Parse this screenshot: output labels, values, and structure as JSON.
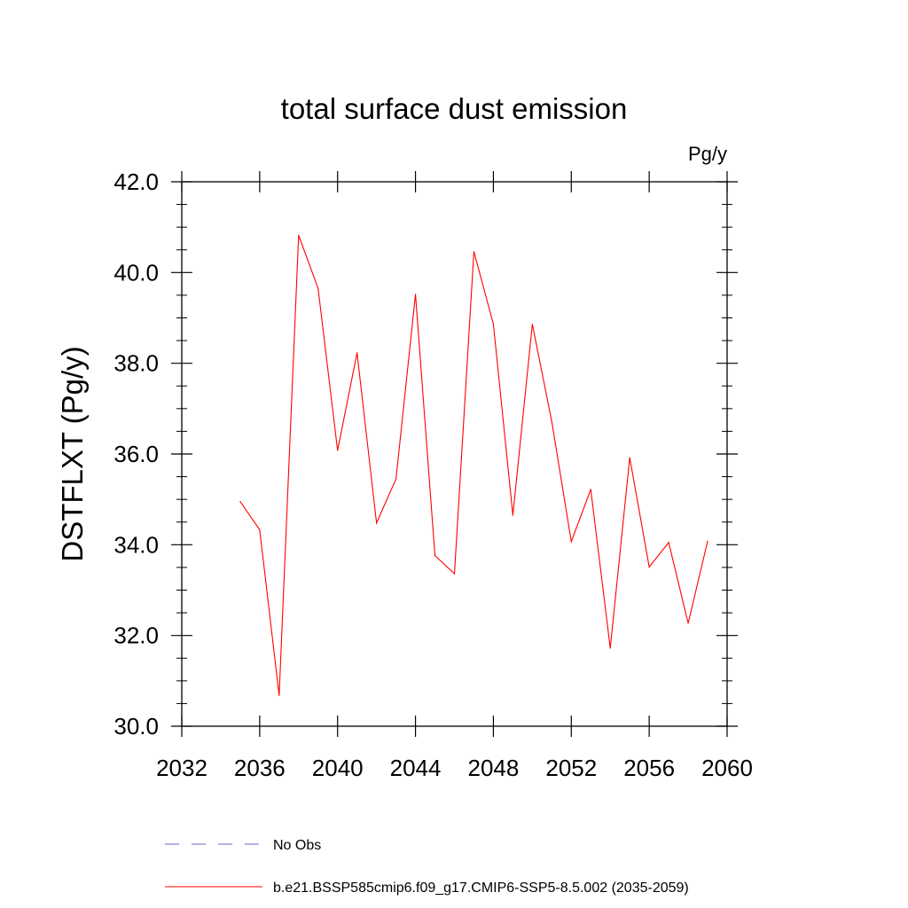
{
  "chart_data": {
    "type": "line",
    "title": "total surface dust emission",
    "units": "Pg/y",
    "ylabel": "DSTFLXT  (Pg/y)",
    "xlabel": "",
    "xlim": [
      2032,
      2060
    ],
    "ylim": [
      30.0,
      42.0
    ],
    "x_ticks": [
      2032,
      2036,
      2040,
      2044,
      2048,
      2052,
      2056,
      2060
    ],
    "x_tick_labels": [
      "2032",
      "2036",
      "2040",
      "2044",
      "2048",
      "2052",
      "2056",
      "2060"
    ],
    "y_ticks": [
      30.0,
      32.0,
      34.0,
      36.0,
      38.0,
      40.0,
      42.0
    ],
    "y_tick_labels": [
      "30.0",
      "32.0",
      "34.0",
      "36.0",
      "38.0",
      "40.0",
      "42.0"
    ],
    "grid": false,
    "series": [
      {
        "name": "b.e21.BSSP585cmip6.f09_g17.CMIP6-SSP5-8.5.002 (2035-2059)",
        "color": "#ff0000",
        "style": "solid",
        "x": [
          2035,
          2036,
          2037,
          2038,
          2039,
          2040,
          2041,
          2042,
          2043,
          2044,
          2045,
          2046,
          2047,
          2048,
          2049,
          2050,
          2051,
          2052,
          2053,
          2054,
          2055,
          2056,
          2057,
          2058,
          2059
        ],
        "values": [
          34.95,
          34.33,
          30.68,
          40.82,
          39.65,
          36.08,
          38.23,
          34.48,
          35.45,
          39.52,
          33.76,
          33.36,
          40.46,
          38.86,
          34.65,
          38.86,
          36.71,
          34.07,
          35.22,
          31.72,
          35.92,
          33.51,
          34.05,
          32.27,
          34.08
        ]
      }
    ],
    "legend": {
      "placement": "bottom",
      "entries": [
        {
          "label": "No Obs",
          "color": "#6666cc",
          "style": "dashed"
        },
        {
          "label": "b.e21.BSSP585cmip6.f09_g17.CMIP6-SSP5-8.5.002 (2035-2059)",
          "color": "#ff0000",
          "style": "solid"
        }
      ]
    }
  }
}
